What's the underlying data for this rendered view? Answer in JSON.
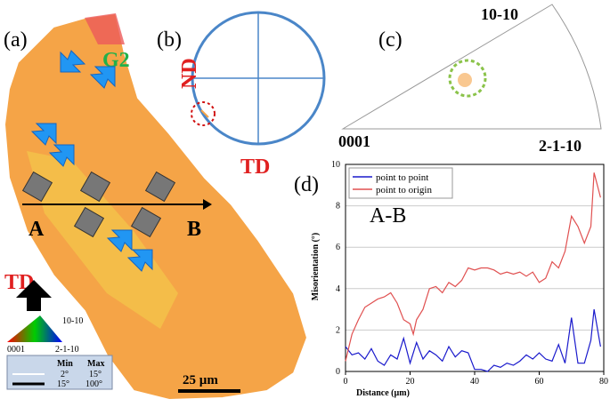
{
  "panels": {
    "a": {
      "label": "(a)",
      "grain": "G2",
      "start": "A",
      "end": "B",
      "direction": "TD",
      "key": {
        "top": "10-10",
        "left": "0001",
        "right": "2-1-10"
      },
      "boundaries": {
        "min": "Min",
        "max": "Max",
        "row1_min": "2°",
        "row1_max": "15°",
        "row2_min": "15°",
        "row2_max": "100°"
      },
      "scale": "25 µm"
    },
    "b": {
      "label": "(b)",
      "vertical": "ND",
      "horizontal": "TD"
    },
    "c": {
      "label": "(c)",
      "top": "10-10",
      "left": "0001",
      "right": "2-1-10"
    },
    "d": {
      "label": "(d)",
      "profile": "A-B"
    }
  },
  "chart_data": {
    "type": "line",
    "xlabel": "Distance (µm)",
    "ylabel": "Misorientation (°)",
    "x": [
      0,
      2,
      4,
      6,
      8,
      10,
      12,
      14,
      16,
      18,
      20,
      21,
      22,
      24,
      26,
      28,
      30,
      32,
      34,
      36,
      38,
      40,
      42,
      44,
      46,
      48,
      50,
      52,
      54,
      56,
      58,
      60,
      62,
      64,
      66,
      68,
      70,
      72,
      74,
      76,
      77,
      79
    ],
    "series": [
      {
        "name": "point to point",
        "color": "#1a1acc",
        "values": [
          1.2,
          0.8,
          0.9,
          0.6,
          1.1,
          0.5,
          0.3,
          0.8,
          0.6,
          1.6,
          0.4,
          0.9,
          1.4,
          0.6,
          1.0,
          0.8,
          0.5,
          1.2,
          0.7,
          1.0,
          0.9,
          0.1,
          0.1,
          0.0,
          0.3,
          0.2,
          0.4,
          0.3,
          0.5,
          0.8,
          0.6,
          0.9,
          0.6,
          0.5,
          1.3,
          0.4,
          2.6,
          0.4,
          0.4,
          1.5,
          3.0,
          1.2
        ]
      },
      {
        "name": "point to origin",
        "color": "#e05050",
        "values": [
          0.5,
          1.8,
          2.5,
          3.1,
          3.3,
          3.5,
          3.6,
          3.8,
          3.3,
          2.5,
          2.3,
          1.8,
          2.5,
          3.0,
          4.0,
          4.1,
          3.8,
          4.3,
          4.1,
          4.4,
          5.0,
          4.9,
          5.0,
          5.0,
          4.9,
          4.7,
          4.8,
          4.7,
          4.8,
          4.6,
          4.8,
          4.3,
          4.5,
          5.3,
          5.0,
          5.8,
          7.5,
          7.0,
          6.2,
          7.0,
          9.6,
          8.4
        ]
      }
    ],
    "xlim": [
      0,
      80
    ],
    "xticks": [
      0,
      20,
      40,
      60,
      80
    ],
    "ylim": [
      0,
      10
    ],
    "yticks": [
      0,
      2,
      4,
      6,
      8,
      10
    ],
    "grid": true
  }
}
